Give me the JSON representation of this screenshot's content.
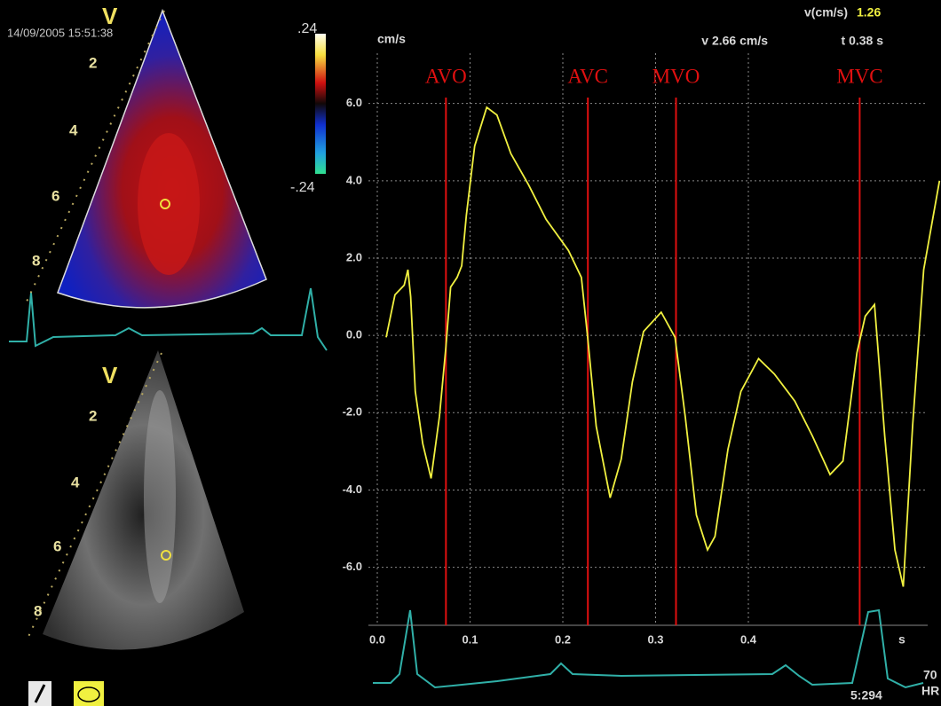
{
  "chart_data": {
    "type": "line",
    "xlabel": "s",
    "ylabel": "cm/s",
    "readout": {
      "label": "v(cm/s)",
      "value": "1.26",
      "velocity": "v 2.66 cm/s",
      "time": "t 0.38 s"
    },
    "xlim": [
      0,
      0.6
    ],
    "ylim": [
      -7.5,
      7.3
    ],
    "xticks": [
      {
        "value": 0,
        "label": "0.0"
      },
      0.1,
      0.2,
      0.3,
      0.4
    ],
    "yticks": [
      {
        "value": -6,
        "label": "-6.0"
      },
      {
        "value": -4,
        "label": "-4.0"
      },
      {
        "value": -2,
        "label": "-2.0"
      },
      {
        "value": 0,
        "label": "0.0"
      },
      {
        "value": 2,
        "label": "2.0"
      },
      {
        "value": 4,
        "label": "4.0"
      },
      {
        "value": 6,
        "label": "6.0"
      }
    ],
    "grid": true,
    "annotations": [
      {
        "text": "AVO",
        "x": 0.074
      },
      {
        "text": "AVC",
        "x": 0.227
      },
      {
        "text": "MVO",
        "x": 0.322
      },
      {
        "text": "MVC",
        "x": 0.52
      }
    ],
    "annotation_color": "#e01010",
    "x": [
      0.0096,
      0.019,
      0.029,
      0.033,
      0.036,
      0.041,
      0.049,
      0.058,
      0.067,
      0.074,
      0.079,
      0.086,
      0.091,
      0.096,
      0.105,
      0.118,
      0.129,
      0.144,
      0.163,
      0.182,
      0.206,
      0.22,
      0.227,
      0.236,
      0.251,
      0.263,
      0.275,
      0.287,
      0.306,
      0.321,
      0.332,
      0.344,
      0.356,
      0.364,
      0.378,
      0.392,
      0.411,
      0.428,
      0.45,
      0.469,
      0.488,
      0.502,
      0.517,
      0.526,
      0.536,
      0.547,
      0.558,
      0.567,
      0.577,
      0.589,
      0.606
    ],
    "series": [
      {
        "color": "#f0f040",
        "values": [
          -0.05,
          1.05,
          1.3,
          1.7,
          1.0,
          -1.45,
          -2.8,
          -3.7,
          -2.1,
          -0.3,
          1.25,
          1.5,
          1.8,
          3.1,
          4.9,
          5.9,
          5.7,
          4.7,
          3.9,
          3.0,
          2.2,
          1.5,
          -0.1,
          -2.35,
          -4.2,
          -3.2,
          -1.2,
          0.1,
          0.6,
          -0.05,
          -2.1,
          -4.65,
          -5.55,
          -5.2,
          -2.95,
          -1.45,
          -0.6,
          -1.0,
          -1.7,
          -2.6,
          -3.6,
          -3.25,
          -0.45,
          0.5,
          0.8,
          -2.6,
          -5.55,
          -6.5,
          -2.35,
          1.7,
          4.0
        ]
      }
    ]
  },
  "screen": {
    "timestamp": "14/09/2005 15:51:38",
    "color_view": "V",
    "bmode_view": "V",
    "color_scale_top": ".24",
    "color_scale_bottom": "-.24",
    "depths": [
      "2",
      "4",
      "6",
      "8"
    ],
    "heart_rate": "70",
    "heart_rate_unit": "HR",
    "frame": "5:294"
  }
}
